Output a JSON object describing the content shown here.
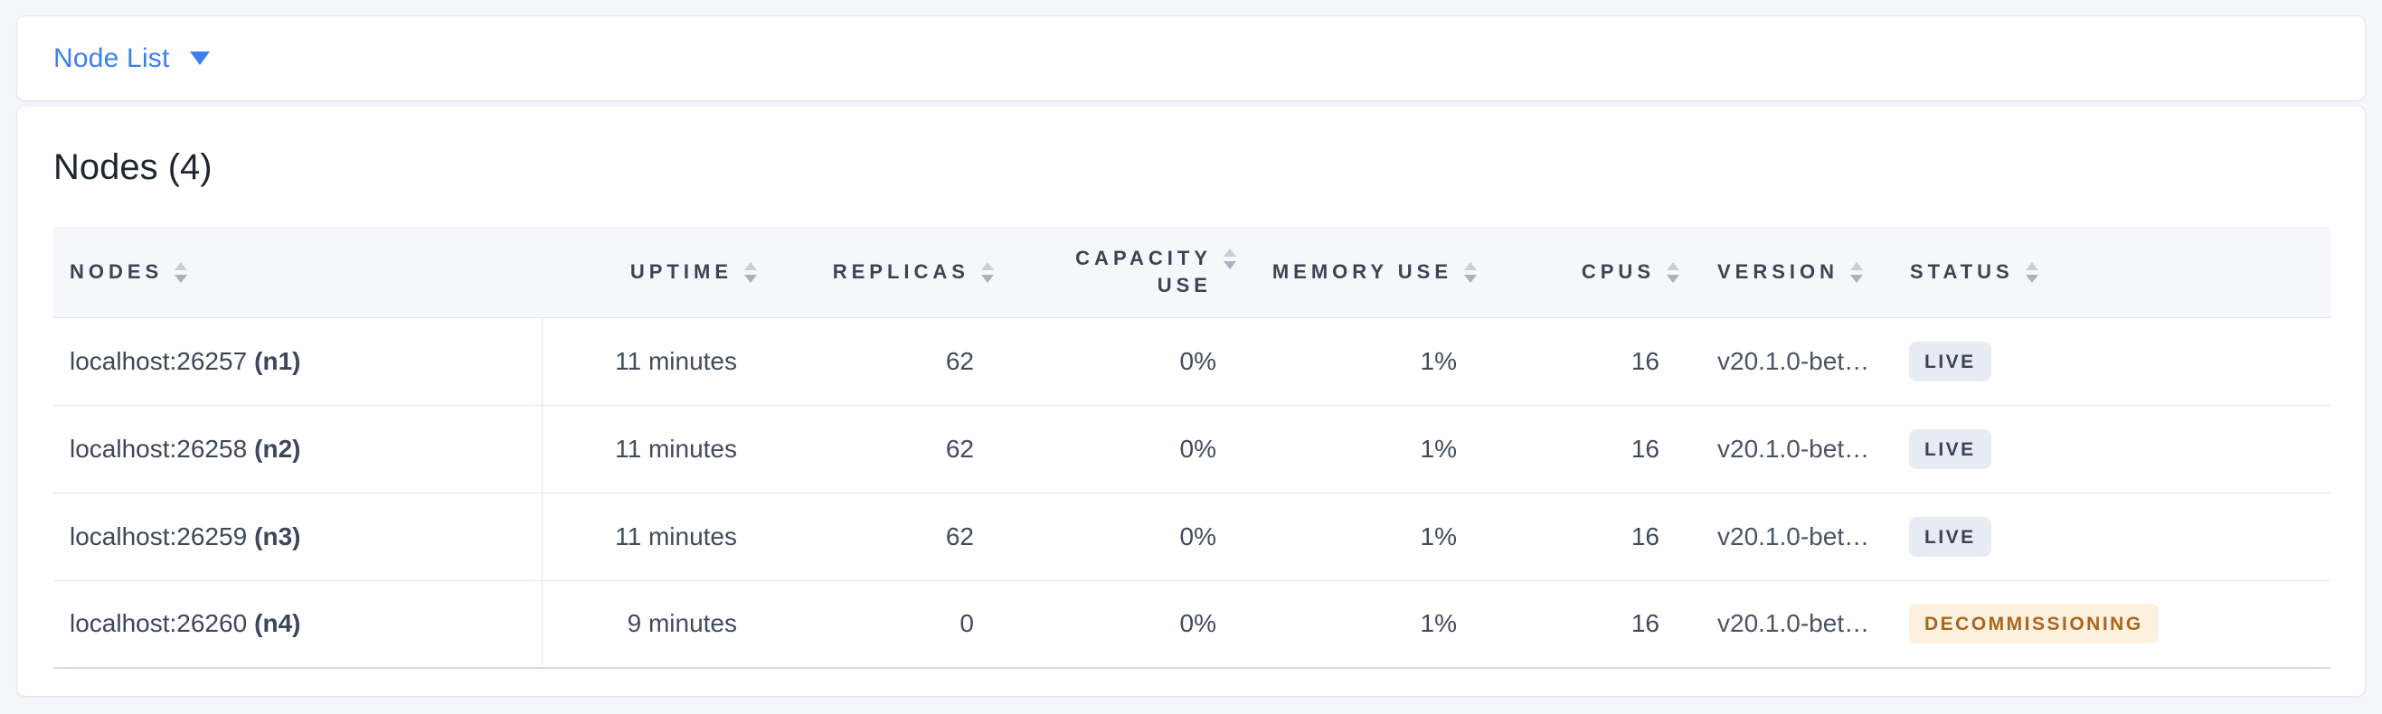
{
  "view_selector": {
    "label": "Node List"
  },
  "content": {
    "title": "Nodes (4)"
  },
  "table": {
    "columns": [
      {
        "key": "nodes",
        "label": "NODES",
        "align": "left"
      },
      {
        "key": "uptime",
        "label": "UPTIME",
        "align": "right"
      },
      {
        "key": "replicas",
        "label": "REPLICAS",
        "align": "right"
      },
      {
        "key": "capacity_use",
        "label": "CAPACITY USE",
        "align": "right"
      },
      {
        "key": "memory_use",
        "label": "MEMORY USE",
        "align": "right"
      },
      {
        "key": "cpus",
        "label": "CPUS",
        "align": "right"
      },
      {
        "key": "version",
        "label": "VERSION",
        "align": "left"
      },
      {
        "key": "status",
        "label": "STATUS",
        "align": "left"
      }
    ],
    "rows": [
      {
        "address": "localhost:26257",
        "node_id": "(n1)",
        "uptime": "11 minutes",
        "replicas": "62",
        "capacity_use": "0%",
        "memory_use": "1%",
        "cpus": "16",
        "version": "v20.1.0-bet…",
        "status": "LIVE",
        "status_type": "live"
      },
      {
        "address": "localhost:26258",
        "node_id": "(n2)",
        "uptime": "11 minutes",
        "replicas": "62",
        "capacity_use": "0%",
        "memory_use": "1%",
        "cpus": "16",
        "version": "v20.1.0-bet…",
        "status": "LIVE",
        "status_type": "live"
      },
      {
        "address": "localhost:26259",
        "node_id": "(n3)",
        "uptime": "11 minutes",
        "replicas": "62",
        "capacity_use": "0%",
        "memory_use": "1%",
        "cpus": "16",
        "version": "v20.1.0-bet…",
        "status": "LIVE",
        "status_type": "live"
      },
      {
        "address": "localhost:26260",
        "node_id": "(n4)",
        "uptime": "9 minutes",
        "replicas": "0",
        "capacity_use": "0%",
        "memory_use": "1%",
        "cpus": "16",
        "version": "v20.1.0-bet…",
        "status": "DECOMMISSIONING",
        "status_type": "decommissioning"
      }
    ]
  },
  "colors": {
    "accent_blue": "#3d7ef0",
    "header_text": "#3b4457",
    "live_badge_bg": "#e7ebf3",
    "live_badge_text": "#3b4457",
    "decommissioning_badge_bg": "#fbf1de",
    "decommissioning_badge_text": "#a9661f"
  }
}
